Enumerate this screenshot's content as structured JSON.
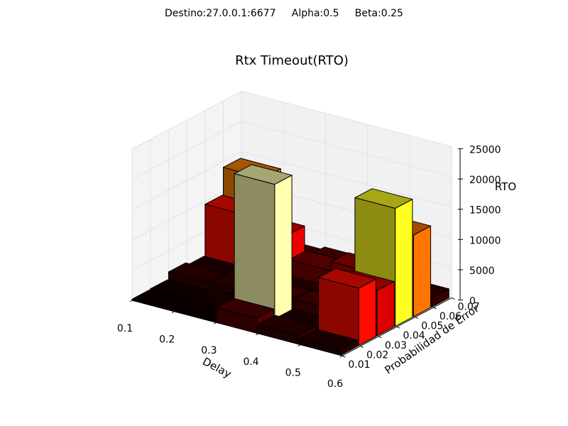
{
  "chart_data": {
    "type": "bar3d",
    "suptitle": "Destino:27.0.0.1:6677     Alpha:0.5     Beta:0.25",
    "title": "Rtx Timeout(RTO)",
    "xlabel": "Delay",
    "ylabel": "Probabilidad de Error",
    "zlabel": "RTO",
    "x_ticks": [
      "0.1",
      "0.2",
      "0.3",
      "0.4",
      "0.5",
      "0.6"
    ],
    "y_ticks": [
      "0.01",
      "0.02",
      "0.03",
      "0.04",
      "0.05",
      "0.06",
      "0.07"
    ],
    "z_ticks": [
      "0",
      "5000",
      "10000",
      "15000",
      "20000",
      "25000"
    ],
    "zlim": [
      0,
      25000
    ],
    "colormap": "hot",
    "bars": [
      {
        "delay": 0.1,
        "error": 0.01,
        "rto": 200
      },
      {
        "delay": 0.1,
        "error": 0.02,
        "rto": 300
      },
      {
        "delay": 0.1,
        "error": 0.03,
        "rto": 1500
      },
      {
        "delay": 0.1,
        "error": 0.04,
        "rto": 1000
      },
      {
        "delay": 0.1,
        "error": 0.05,
        "rto": 9500
      },
      {
        "delay": 0.1,
        "error": 0.06,
        "rto": 14000
      },
      {
        "delay": 0.2,
        "error": 0.01,
        "rto": 200
      },
      {
        "delay": 0.2,
        "error": 0.02,
        "rto": 800
      },
      {
        "delay": 0.2,
        "error": 0.03,
        "rto": 1500
      },
      {
        "delay": 0.2,
        "error": 0.04,
        "rto": 2000
      },
      {
        "delay": 0.2,
        "error": 0.05,
        "rto": 8000
      },
      {
        "delay": 0.2,
        "error": 0.06,
        "rto": 2500
      },
      {
        "delay": 0.3,
        "error": 0.01,
        "rto": 2500
      },
      {
        "delay": 0.3,
        "error": 0.02,
        "rto": 23000
      },
      {
        "delay": 0.3,
        "error": 0.03,
        "rto": 2500
      },
      {
        "delay": 0.3,
        "error": 0.04,
        "rto": 1500
      },
      {
        "delay": 0.3,
        "error": 0.05,
        "rto": 4000
      },
      {
        "delay": 0.3,
        "error": 0.06,
        "rto": 3000
      },
      {
        "delay": 0.4,
        "error": 0.01,
        "rto": 1500
      },
      {
        "delay": 0.4,
        "error": 0.02,
        "rto": 1000
      },
      {
        "delay": 0.4,
        "error": 0.03,
        "rto": 2500
      },
      {
        "delay": 0.4,
        "error": 0.04,
        "rto": 2000
      },
      {
        "delay": 0.4,
        "error": 0.05,
        "rto": 5500
      },
      {
        "delay": 0.4,
        "error": 0.06,
        "rto": 1500
      },
      {
        "delay": 0.5,
        "error": 0.01,
        "rto": 1000
      },
      {
        "delay": 0.5,
        "error": 0.02,
        "rto": 9500
      },
      {
        "delay": 0.5,
        "error": 0.03,
        "rto": 7500
      },
      {
        "delay": 0.5,
        "error": 0.04,
        "rto": 19500
      },
      {
        "delay": 0.5,
        "error": 0.05,
        "rto": 13500
      },
      {
        "delay": 0.5,
        "error": 0.06,
        "rto": 1500
      }
    ]
  }
}
